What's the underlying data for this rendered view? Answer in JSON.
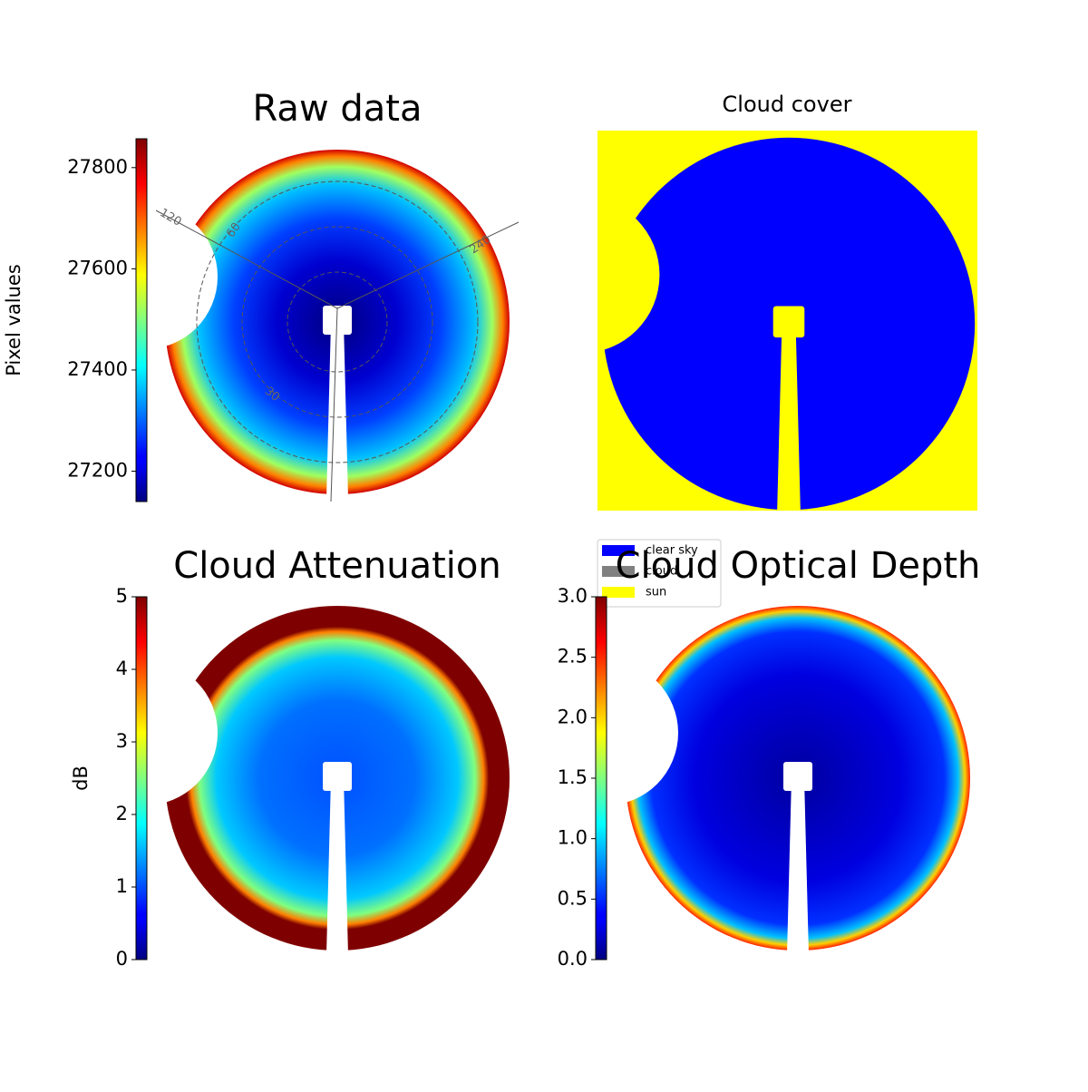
{
  "chart_data": [
    {
      "type": "heatmap",
      "title": "Raw data",
      "colorbar": {
        "label": "Pixel values",
        "colormap": "jet",
        "lim": [
          27140,
          27857
        ],
        "ticks": [
          27200,
          27400,
          27600,
          27800
        ]
      },
      "polar_labels": [
        "120",
        "60",
        "240",
        "30"
      ]
    },
    {
      "type": "classification",
      "title": "Cloud cover",
      "legend": [
        {
          "name": "clear sky",
          "color": "#0000ff"
        },
        {
          "name": "cloud",
          "color": "#808080"
        },
        {
          "name": "sun",
          "color": "#ffff00"
        }
      ]
    },
    {
      "type": "heatmap",
      "title": "Cloud Attenuation",
      "colorbar": {
        "label": "dB",
        "colormap": "jet",
        "lim": [
          0,
          5
        ],
        "ticks": [
          0,
          1,
          2,
          3,
          4,
          5
        ]
      }
    },
    {
      "type": "heatmap",
      "title": "Cloud Optical Depth",
      "colorbar": {
        "colormap": "jet",
        "lim": [
          0,
          3
        ],
        "ticks": [
          {
            "value": 0,
            "label": "0.0"
          },
          {
            "value": 0.5,
            "label": "0.5"
          },
          {
            "value": 1,
            "label": "1.0"
          },
          {
            "value": 1.5,
            "label": "1.5"
          },
          {
            "value": 2,
            "label": "2.0"
          },
          {
            "value": 2.5,
            "label": "2.5"
          },
          {
            "value": 3,
            "label": "3.0"
          }
        ]
      }
    }
  ]
}
